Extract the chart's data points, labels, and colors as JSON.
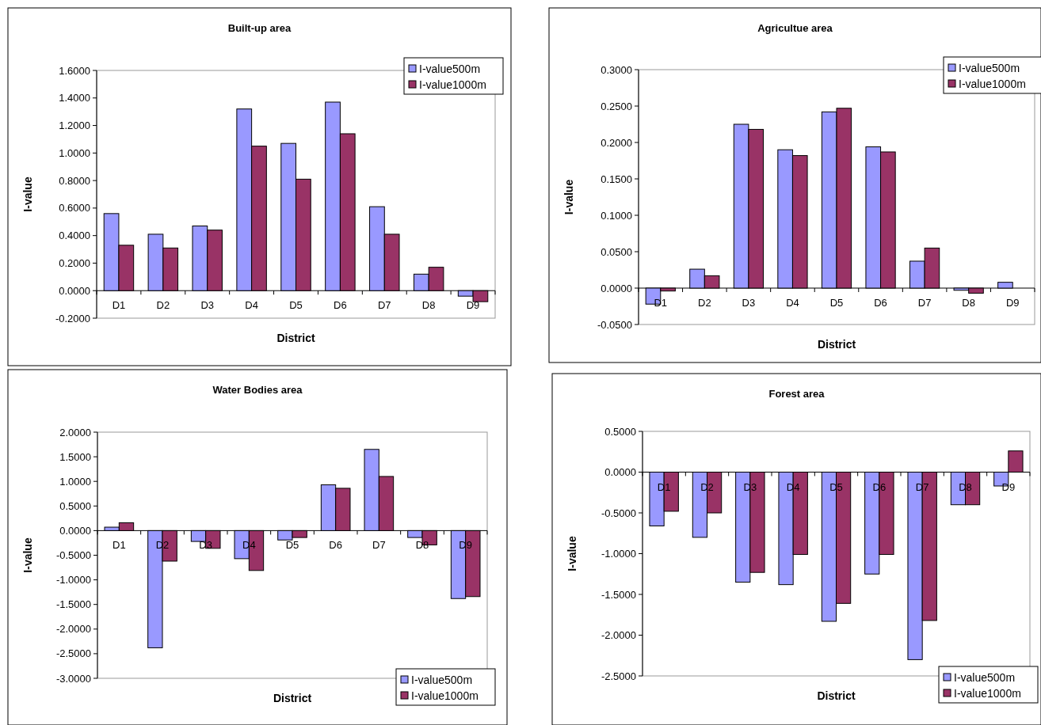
{
  "chart_data": [
    {
      "type": "bar",
      "title": "Built-up area",
      "xlabel": "District",
      "ylabel": "I-value",
      "categories": [
        "D1",
        "D2",
        "D3",
        "D4",
        "D5",
        "D6",
        "D7",
        "D8",
        "D9"
      ],
      "series": [
        {
          "name": "I-value500m",
          "color": "#9999ff",
          "values": [
            0.56,
            0.41,
            0.47,
            1.32,
            1.07,
            1.37,
            0.61,
            0.12,
            -0.04
          ]
        },
        {
          "name": "I-value1000m",
          "color": "#993366",
          "values": [
            0.33,
            0.31,
            0.44,
            1.05,
            0.81,
            1.14,
            0.41,
            0.17,
            -0.08
          ]
        }
      ],
      "ylim": [
        -0.2,
        1.6
      ],
      "yticks": [
        {
          "value": -0.2,
          "label": "-0.2000"
        },
        {
          "value": 0,
          "label": "0.0000"
        },
        {
          "value": 0.2,
          "label": "0.2000"
        },
        {
          "value": 0.4,
          "label": "0.4000"
        },
        {
          "value": 0.6,
          "label": "0.6000"
        },
        {
          "value": 0.8,
          "label": "0.8000"
        },
        {
          "value": 1,
          "label": "1.0000"
        },
        {
          "value": 1.2,
          "label": "1.2000"
        },
        {
          "value": 1.4,
          "label": "1.4000"
        },
        {
          "value": 1.6,
          "label": "1.6000"
        }
      ],
      "legend": "top right"
    },
    {
      "type": "bar",
      "title": "Agricultue area",
      "xlabel": "District",
      "ylabel": "I-value",
      "categories": [
        "D1",
        "D2",
        "D3",
        "D4",
        "D5",
        "D6",
        "D7",
        "D8",
        "D9"
      ],
      "series": [
        {
          "name": "I-value500m",
          "color": "#9999ff",
          "values": [
            -0.022,
            0.026,
            0.225,
            0.19,
            0.242,
            0.194,
            0.037,
            -0.003,
            0.008
          ]
        },
        {
          "name": "I-value1000m",
          "color": "#993366",
          "values": [
            -0.004,
            0.017,
            0.218,
            0.182,
            0.247,
            0.187,
            0.055,
            -0.007,
            0
          ]
        }
      ],
      "ylim": [
        -0.05,
        0.3
      ],
      "yticks": [
        {
          "value": -0.05,
          "label": "-0.0500"
        },
        {
          "value": 0,
          "label": "0.0000"
        },
        {
          "value": 0.05,
          "label": "0.0500"
        },
        {
          "value": 0.1,
          "label": "0.1000"
        },
        {
          "value": 0.15,
          "label": "0.1500"
        },
        {
          "value": 0.2,
          "label": "0.2000"
        },
        {
          "value": 0.25,
          "label": "0.2500"
        },
        {
          "value": 0.3,
          "label": "0.3000"
        }
      ],
      "legend": "top right"
    },
    {
      "type": "bar",
      "title": "Water Bodies area",
      "xlabel": "District",
      "ylabel": "I-value",
      "categories": [
        "D1",
        "D2",
        "D3",
        "D4",
        "D5",
        "D6",
        "D7",
        "D8",
        "D9"
      ],
      "series": [
        {
          "name": "I-value500m",
          "color": "#9999ff",
          "values": [
            0.07,
            -2.38,
            -0.22,
            -0.57,
            -0.19,
            0.93,
            1.65,
            -0.14,
            -1.38
          ]
        },
        {
          "name": "I-value1000m",
          "color": "#993366",
          "values": [
            0.16,
            -0.62,
            -0.36,
            -0.81,
            -0.14,
            0.86,
            1.1,
            -0.29,
            -1.34
          ]
        }
      ],
      "ylim": [
        -3,
        2
      ],
      "yticks": [
        {
          "value": -3,
          "label": "-3.0000"
        },
        {
          "value": -2.5,
          "label": "-2.5000"
        },
        {
          "value": -2,
          "label": "-2.0000"
        },
        {
          "value": -1.5,
          "label": "-1.5000"
        },
        {
          "value": -1,
          "label": "-1.0000"
        },
        {
          "value": -0.5,
          "label": "-0.5000"
        },
        {
          "value": 0,
          "label": "0.0000"
        },
        {
          "value": 0.5,
          "label": "0.5000"
        },
        {
          "value": 1,
          "label": "1.0000"
        },
        {
          "value": 1.5,
          "label": "1.5000"
        },
        {
          "value": 2,
          "label": "2.0000"
        }
      ],
      "legend": "bottom right"
    },
    {
      "type": "bar",
      "title": "Forest area",
      "xlabel": "District",
      "ylabel": "I-value",
      "categories": [
        "D1",
        "D2",
        "D3",
        "D4",
        "D5",
        "D6",
        "D7",
        "D8",
        "D9"
      ],
      "series": [
        {
          "name": "I-value500m",
          "color": "#9999ff",
          "values": [
            -0.66,
            -0.8,
            -1.35,
            -1.38,
            -1.83,
            -1.25,
            -2.3,
            -0.4,
            -0.17
          ]
        },
        {
          "name": "I-value1000m",
          "color": "#993366",
          "values": [
            -0.48,
            -0.5,
            -1.23,
            -1.01,
            -1.61,
            -1.01,
            -1.82,
            -0.4,
            0.26
          ]
        }
      ],
      "ylim": [
        -2.5,
        0.5
      ],
      "yticks": [
        {
          "value": -2.5,
          "label": "-2.5000"
        },
        {
          "value": -2,
          "label": "-2.0000"
        },
        {
          "value": -1.5,
          "label": "-1.5000"
        },
        {
          "value": -1,
          "label": "-1.0000"
        },
        {
          "value": -0.5,
          "label": "-0.5000"
        },
        {
          "value": 0,
          "label": "0.0000"
        },
        {
          "value": 0.5,
          "label": "0.5000"
        }
      ],
      "legend": "bottom right"
    }
  ]
}
